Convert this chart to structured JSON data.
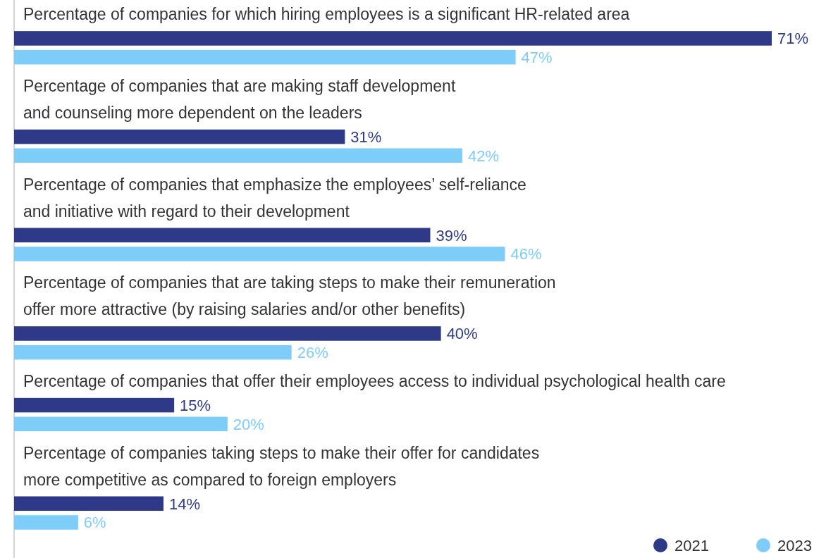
{
  "chart_data": {
    "type": "bar",
    "orientation": "horizontal",
    "categories": [
      "Percentage of companies for which hiring employees is a significant HR-related area",
      "Percentage of companies that are making staff development\nand counseling more dependent on the leaders",
      "Percentage of companies that emphasize the employees’ self-reliance\nand initiative with regard to their development",
      "Percentage of companies that are taking steps to make their remuneration\noffer more attractive (by raising salaries and/or other benefits)",
      "Percentage of companies that offer their employees access to individual psychological health care",
      "Percentage of companies taking steps to make their offer for candidates\nmore competitive as compared to foreign employers"
    ],
    "series": [
      {
        "name": "2021",
        "color": "#2e3a87",
        "values": [
          71,
          31,
          39,
          40,
          15,
          14
        ],
        "value_labels": [
          "71%",
          "31%",
          "39%",
          "40%",
          "15%",
          "14%"
        ]
      },
      {
        "name": "2023",
        "color": "#7dcdf8",
        "values": [
          47,
          42,
          46,
          26,
          20,
          6
        ],
        "value_labels": [
          "47%",
          "42%",
          "46%",
          "26%",
          "20%",
          "6%"
        ]
      }
    ],
    "legend": "bottom right"
  }
}
